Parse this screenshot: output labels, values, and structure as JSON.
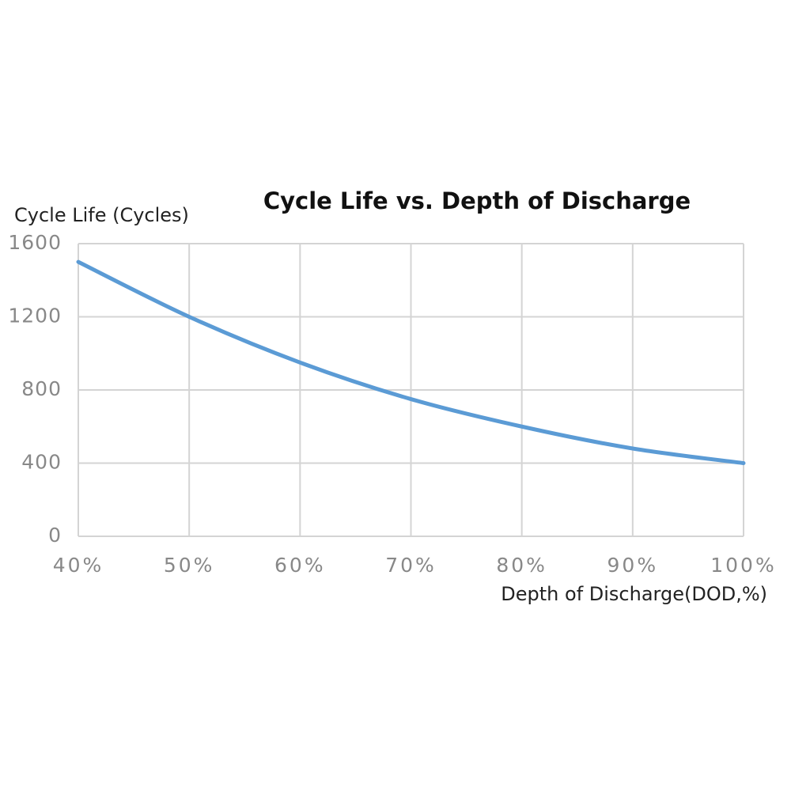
{
  "chart_data": {
    "type": "line",
    "title": "Cycle Life vs. Depth of Discharge",
    "ylabel": "Cycle Life (Cycles)",
    "xlabel": "Depth of Discharge(DOD,%)",
    "x": [
      40,
      50,
      60,
      70,
      80,
      90,
      100
    ],
    "series": [
      {
        "name": "Cycle Life",
        "color": "#5b9bd5",
        "values": [
          1500,
          1200,
          950,
          750,
          600,
          480,
          400
        ]
      }
    ],
    "xlim": [
      40,
      100
    ],
    "xticks": [
      {
        "value": 40,
        "label": "40%"
      },
      {
        "value": 50,
        "label": "50%"
      },
      {
        "value": 60,
        "label": "60%"
      },
      {
        "value": 70,
        "label": "70%"
      },
      {
        "value": 80,
        "label": "80%"
      },
      {
        "value": 90,
        "label": "90%"
      },
      {
        "value": 100,
        "label": "100%"
      }
    ],
    "ylim": [
      0,
      1600
    ],
    "yticks": [
      0,
      400,
      800,
      1200,
      1600
    ],
    "grid": true
  }
}
